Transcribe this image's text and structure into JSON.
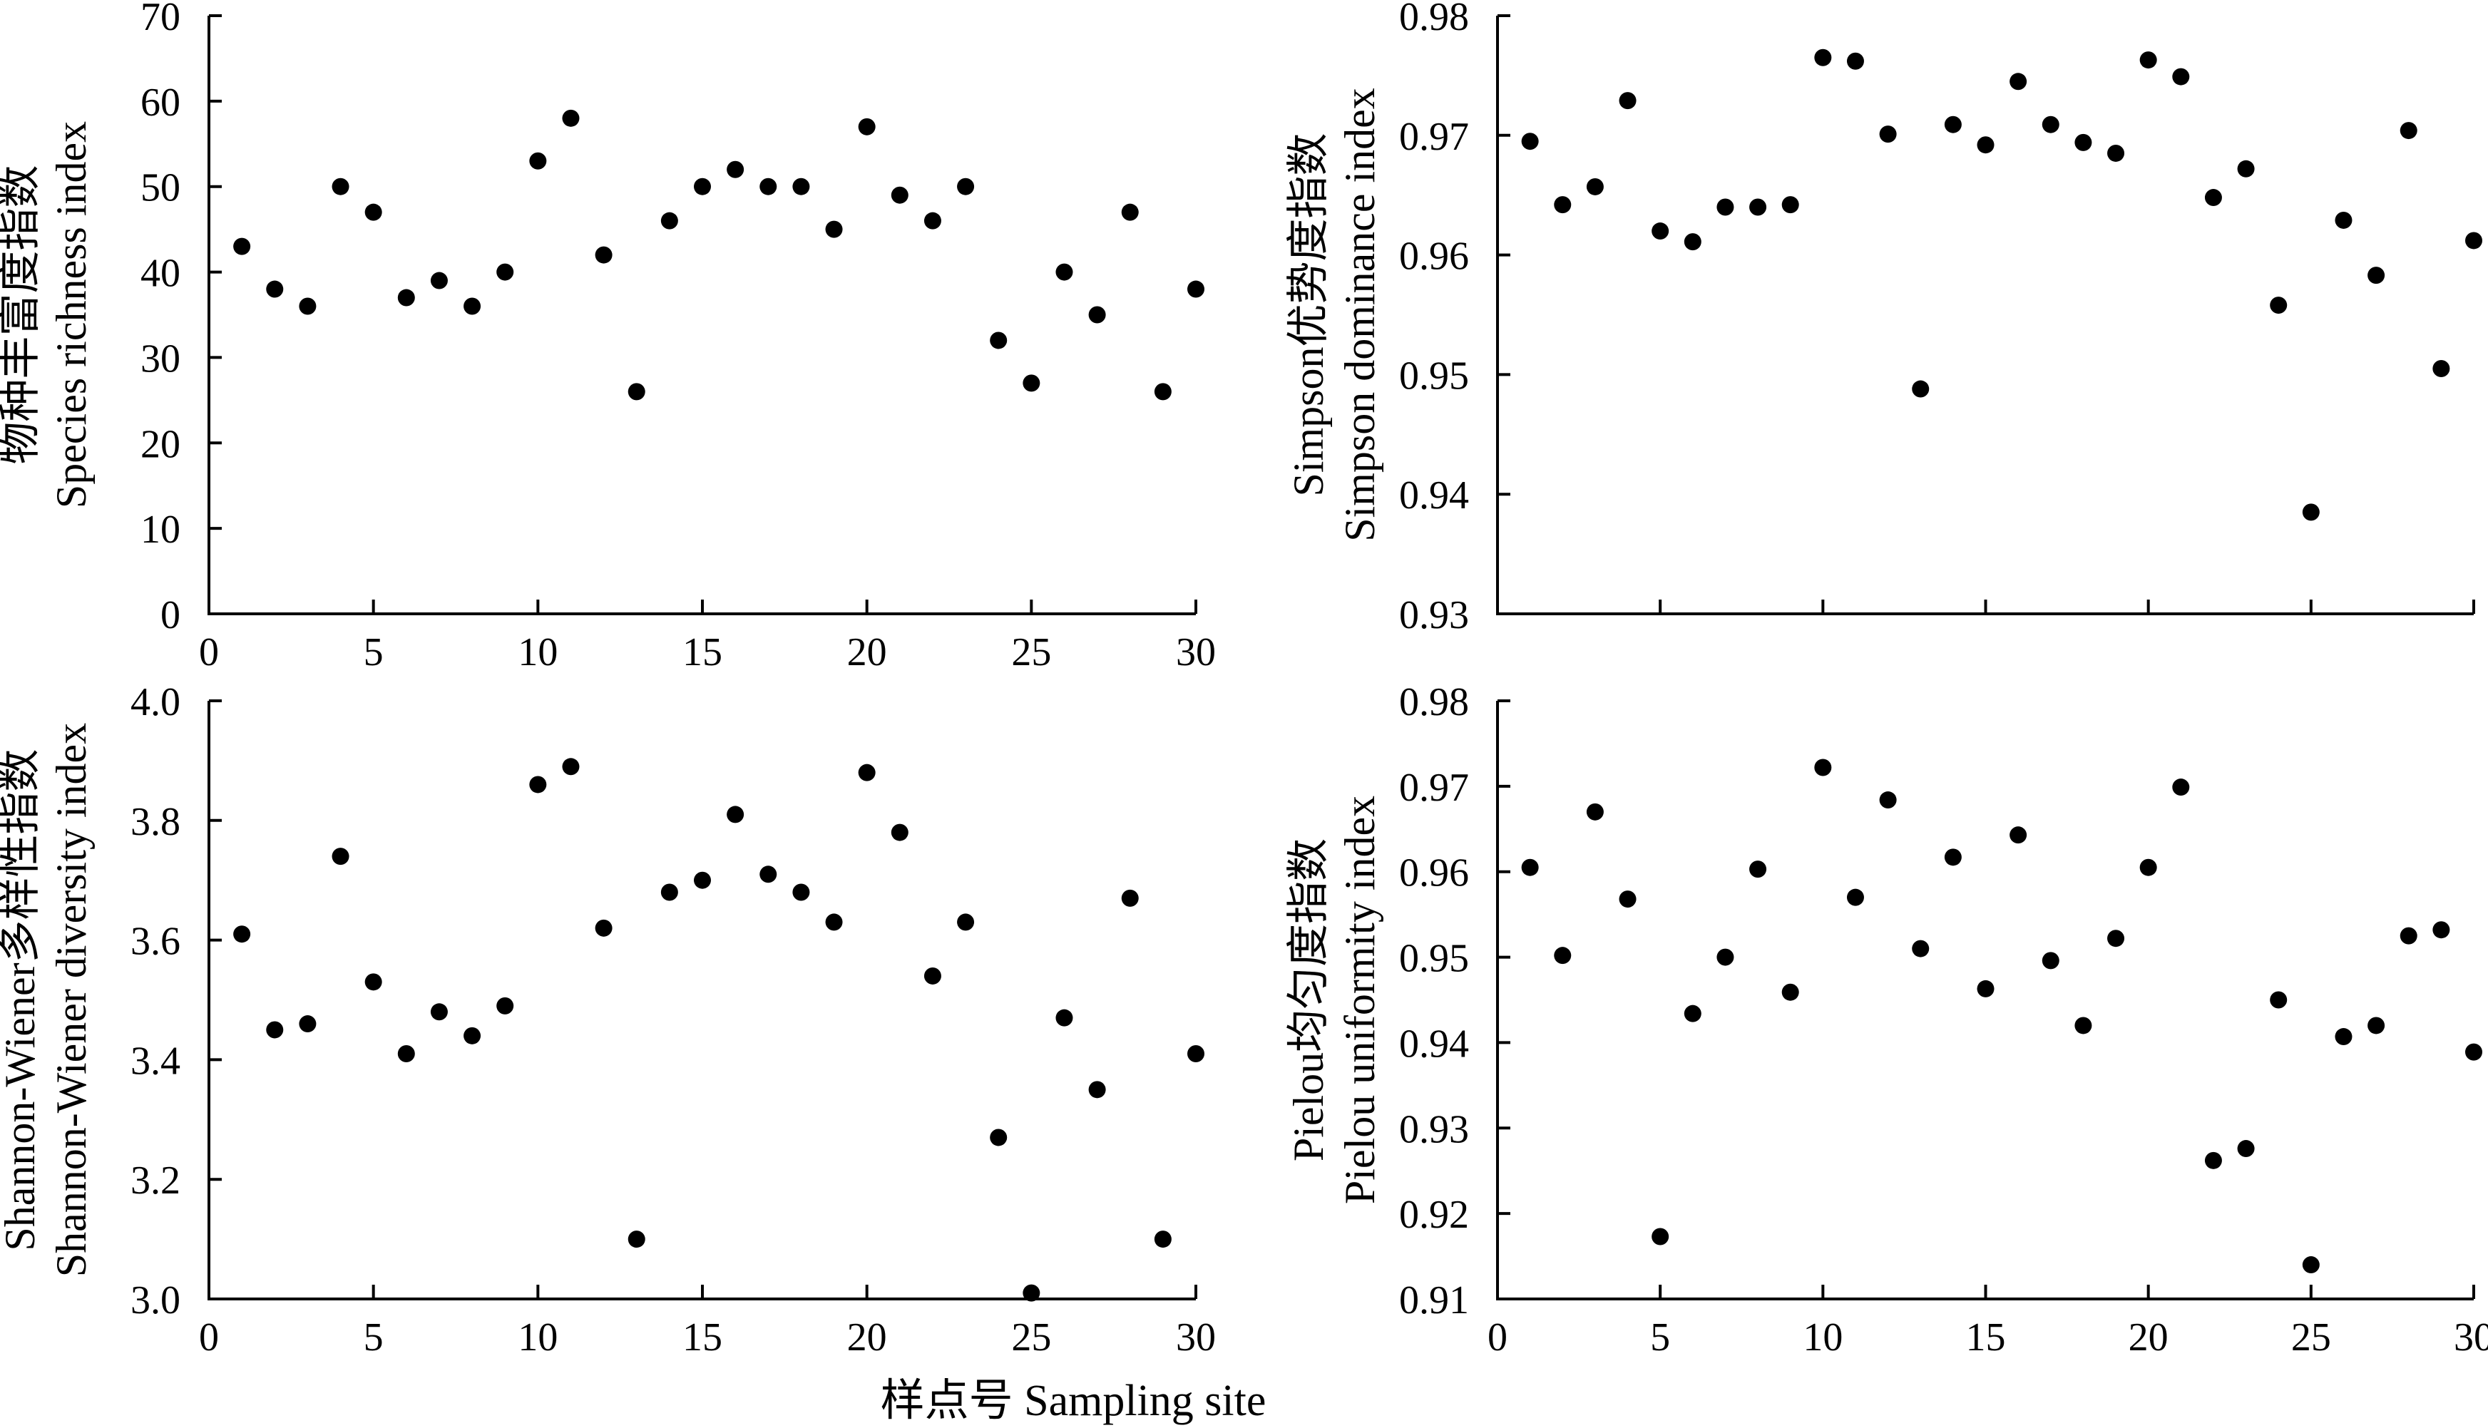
{
  "figure": {
    "xlabel": "样点号 Sampling site",
    "text_color": "#000000",
    "marker_color": "#000000"
  },
  "chart_data": [
    {
      "type": "scatter",
      "title": "",
      "ylabel_cn": "物种丰富度指数",
      "ylabel_en": "Species richness index",
      "xlim": [
        0,
        30
      ],
      "ylim": [
        0,
        70
      ],
      "xticks": [
        "0",
        "5",
        "10",
        "15",
        "20",
        "25",
        "30"
      ],
      "yticks": [
        "0",
        "10",
        "20",
        "30",
        "40",
        "50",
        "60",
        "70"
      ],
      "grid": false,
      "series": [
        {
          "x": [
            1,
            2,
            3,
            4,
            5,
            6,
            7,
            8,
            9,
            10,
            11,
            12,
            13,
            14,
            15,
            16,
            17,
            18,
            19,
            20,
            21,
            22,
            23,
            24,
            25,
            26,
            27,
            28,
            29,
            30
          ],
          "y": [
            43,
            38,
            36,
            50,
            47,
            37,
            39,
            36,
            40,
            53,
            58,
            42,
            26,
            46,
            50,
            52,
            50,
            50,
            45,
            57,
            49,
            46,
            50,
            32,
            27,
            40,
            35,
            47,
            26,
            38
          ]
        }
      ]
    },
    {
      "type": "scatter",
      "title": "",
      "ylabel_cn": "Simpson优势度指数",
      "ylabel_en": "Simpson dominance index",
      "xlim": [
        0,
        30
      ],
      "ylim": [
        0.93,
        0.98
      ],
      "xticks": [],
      "yticks": [
        "0.93",
        "0.94",
        "0.95",
        "0.96",
        "0.97",
        "0.98"
      ],
      "grid": false,
      "series": [
        {
          "x": [
            1,
            2,
            3,
            4,
            5,
            6,
            7,
            8,
            9,
            10,
            11,
            12,
            13,
            14,
            15,
            16,
            17,
            18,
            19,
            20,
            21,
            22,
            23,
            24,
            25,
            26,
            27,
            28,
            29,
            30
          ],
          "y": [
            0.9695,
            0.9642,
            0.9657,
            0.9729,
            0.962,
            0.9611,
            0.964,
            0.964,
            0.9642,
            0.9765,
            0.9762,
            0.9701,
            0.9488,
            0.9709,
            0.9692,
            0.9745,
            0.9709,
            0.9694,
            0.9685,
            0.9763,
            0.9749,
            0.9648,
            0.9672,
            0.9558,
            0.9385,
            0.9629,
            0.9583,
            0.9704,
            0.9505,
            0.9612
          ]
        }
      ]
    },
    {
      "type": "scatter",
      "title": "",
      "ylabel_cn": "Shannon-Wiener多样性指数",
      "ylabel_en": "Shannon-Wiener diversity index",
      "xlim": [
        0,
        30
      ],
      "ylim": [
        3.0,
        4.0
      ],
      "xticks": [
        "0",
        "5",
        "10",
        "15",
        "20",
        "25",
        "30"
      ],
      "yticks": [
        "3.0",
        "3.2",
        "3.4",
        "3.6",
        "3.8",
        "4.0"
      ],
      "grid": false,
      "series": [
        {
          "x": [
            1,
            2,
            3,
            4,
            5,
            6,
            7,
            8,
            9,
            10,
            11,
            12,
            13,
            14,
            15,
            16,
            17,
            18,
            19,
            20,
            21,
            22,
            23,
            24,
            25,
            26,
            27,
            28,
            29,
            30
          ],
          "y": [
            3.61,
            3.45,
            3.46,
            3.74,
            3.53,
            3.41,
            3.48,
            3.44,
            3.49,
            3.86,
            3.89,
            3.62,
            3.1,
            3.68,
            3.7,
            3.81,
            3.71,
            3.68,
            3.63,
            3.88,
            3.78,
            3.54,
            3.63,
            3.27,
            3.01,
            3.47,
            3.35,
            3.67,
            3.1,
            3.41
          ]
        }
      ]
    },
    {
      "type": "scatter",
      "title": "",
      "ylabel_cn": "Pielou均匀度指数",
      "ylabel_en": "Pielou uniformity index",
      "xlim": [
        0,
        30
      ],
      "ylim": [
        0.91,
        0.98
      ],
      "xticks": [
        "0",
        "5",
        "10",
        "15",
        "20",
        "25",
        "30"
      ],
      "yticks": [
        "0.91",
        "0.92",
        "0.93",
        "0.94",
        "0.95",
        "0.96",
        "0.97",
        "0.98"
      ],
      "grid": false,
      "series": [
        {
          "x": [
            1,
            2,
            3,
            4,
            5,
            6,
            7,
            8,
            9,
            10,
            11,
            12,
            13,
            14,
            15,
            16,
            17,
            18,
            19,
            20,
            21,
            22,
            23,
            24,
            25,
            26,
            27,
            28,
            29,
            30
          ],
          "y": [
            0.9605,
            0.9502,
            0.967,
            0.9568,
            0.9173,
            0.9434,
            0.95,
            0.9603,
            0.9459,
            0.9722,
            0.957,
            0.9684,
            0.951,
            0.9617,
            0.9463,
            0.9643,
            0.9496,
            0.942,
            0.9522,
            0.9605,
            0.9699,
            0.9262,
            0.9276,
            0.945,
            0.914,
            0.9407,
            0.942,
            0.9525,
            0.9532,
            0.9389
          ]
        }
      ]
    }
  ]
}
